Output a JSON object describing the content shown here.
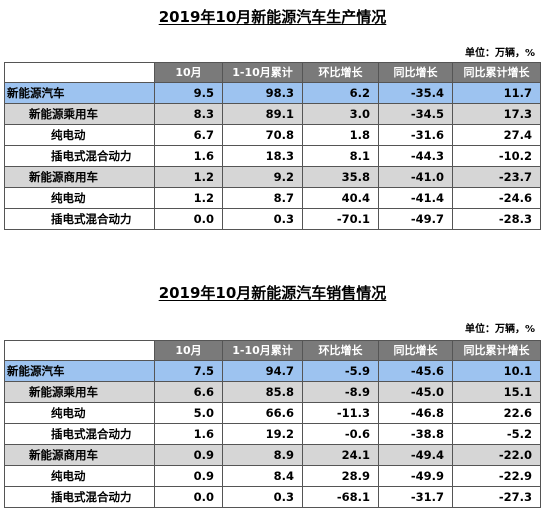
{
  "columns": [
    "10月",
    "1-10月累计",
    "环比增长",
    "同比增长",
    "同比累计增长"
  ],
  "unit_label": "单位：万辆，%",
  "tables": [
    {
      "title": "2019年10月新能源汽车生产情况",
      "rows": [
        {
          "label": "新能源汽车",
          "level": 0,
          "values": [
            "9.5",
            "98.3",
            "6.2",
            "-35.4",
            "11.7"
          ]
        },
        {
          "label": "新能源乘用车",
          "level": 1,
          "values": [
            "8.3",
            "89.1",
            "3.0",
            "-34.5",
            "17.3"
          ]
        },
        {
          "label": "纯电动",
          "level": 2,
          "values": [
            "6.7",
            "70.8",
            "1.8",
            "-31.6",
            "27.4"
          ]
        },
        {
          "label": "插电式混合动力",
          "level": 2,
          "values": [
            "1.6",
            "18.3",
            "8.1",
            "-44.3",
            "-10.2"
          ]
        },
        {
          "label": "新能源商用车",
          "level": 1,
          "values": [
            "1.2",
            "9.2",
            "35.8",
            "-41.0",
            "-23.7"
          ]
        },
        {
          "label": "纯电动",
          "level": 2,
          "values": [
            "1.2",
            "8.7",
            "40.4",
            "-41.4",
            "-24.6"
          ]
        },
        {
          "label": "插电式混合动力",
          "level": 2,
          "values": [
            "0.0",
            "0.3",
            "-70.1",
            "-49.7",
            "-28.3"
          ]
        }
      ]
    },
    {
      "title": "2019年10月新能源汽车销售情况",
      "rows": [
        {
          "label": "新能源汽车",
          "level": 0,
          "values": [
            "7.5",
            "94.7",
            "-5.9",
            "-45.6",
            "10.1"
          ]
        },
        {
          "label": "新能源乘用车",
          "level": 1,
          "values": [
            "6.6",
            "85.8",
            "-8.9",
            "-45.0",
            "15.1"
          ]
        },
        {
          "label": "纯电动",
          "level": 2,
          "values": [
            "5.0",
            "66.6",
            "-11.3",
            "-46.8",
            "22.6"
          ]
        },
        {
          "label": "插电式混合动力",
          "level": 2,
          "values": [
            "1.6",
            "19.2",
            "-0.6",
            "-38.8",
            "-5.2"
          ]
        },
        {
          "label": "新能源商用车",
          "level": 1,
          "values": [
            "0.9",
            "8.9",
            "24.1",
            "-49.4",
            "-22.0"
          ]
        },
        {
          "label": "纯电动",
          "level": 2,
          "values": [
            "0.9",
            "8.4",
            "28.9",
            "-49.9",
            "-22.9"
          ]
        },
        {
          "label": "插电式混合动力",
          "level": 2,
          "values": [
            "0.0",
            "0.3",
            "-68.1",
            "-31.7",
            "-27.3"
          ]
        }
      ]
    }
  ]
}
